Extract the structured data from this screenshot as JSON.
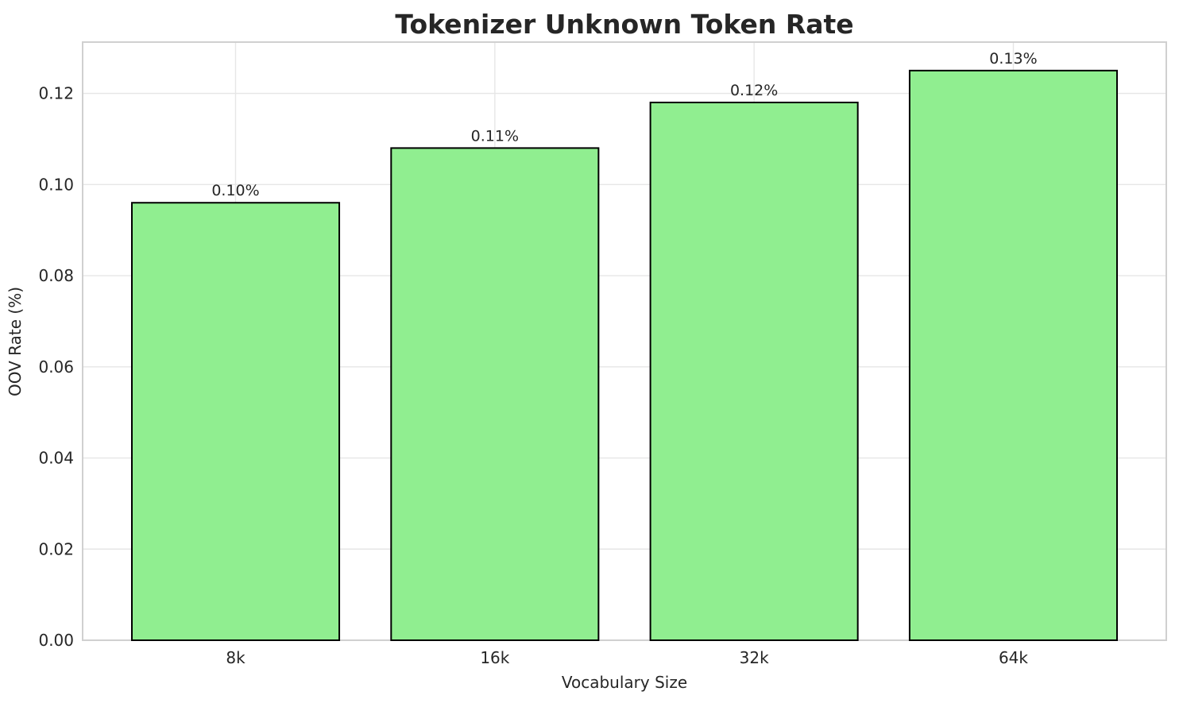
{
  "figure": {
    "background": "#ffffff",
    "text_color": "#262626",
    "grid_color": "#e6e6e6",
    "spine_color": "#d0d0d0"
  },
  "chart_data": {
    "type": "bar",
    "title": "Tokenizer Unknown Token Rate",
    "xlabel": "Vocabulary Size",
    "ylabel": "OOV Rate (%)",
    "categories": [
      "8k",
      "16k",
      "32k",
      "64k"
    ],
    "values": [
      0.096,
      0.108,
      0.118,
      0.125
    ],
    "bar_labels": [
      "0.10%",
      "0.11%",
      "0.12%",
      "0.13%"
    ],
    "ylim": [
      0,
      0.13125
    ],
    "ytick_values": [
      0.0,
      0.02,
      0.04,
      0.06,
      0.08,
      0.1,
      0.12
    ],
    "ytick_labels": [
      "0.00",
      "0.02",
      "0.04",
      "0.06",
      "0.08",
      "0.10",
      "0.12"
    ],
    "bar_color": "#90ee90",
    "bar_edge_color": "#000000",
    "grid": "both",
    "legend_position": "none"
  }
}
